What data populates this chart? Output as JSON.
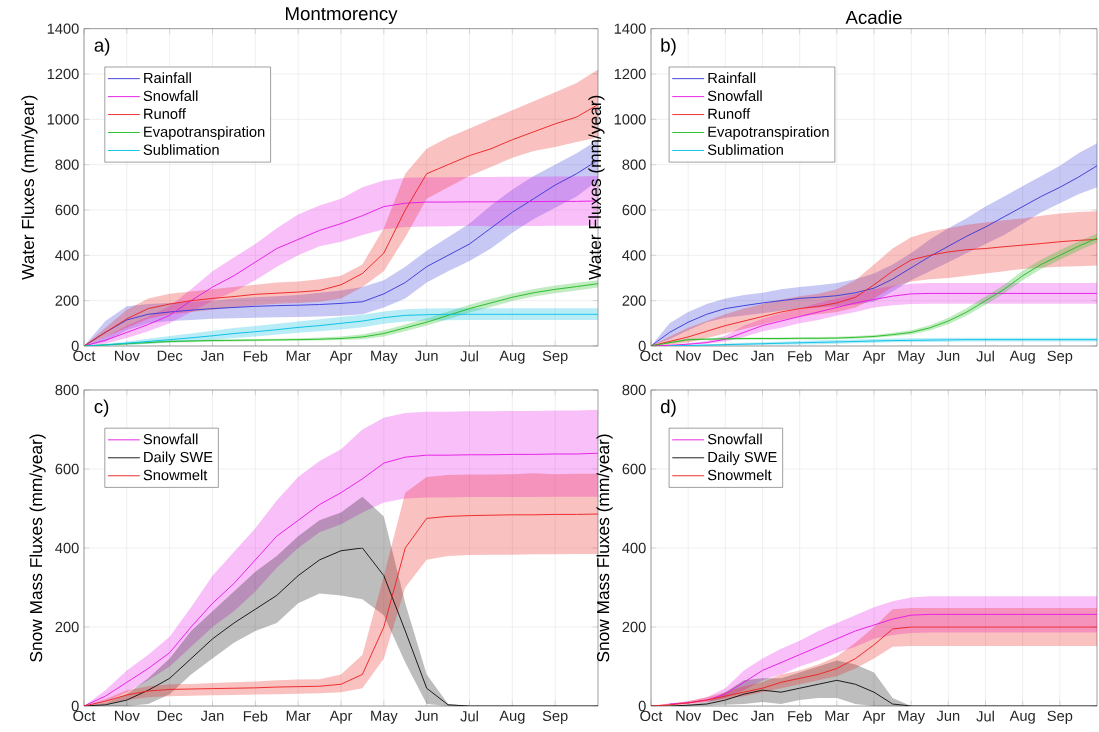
{
  "chart_data": [
    {
      "type": "line",
      "title": "Montmorency",
      "ylabel": "Water Fluxes (mm/year)",
      "annotations": [
        "a)"
      ],
      "grid": true,
      "legend": "top left",
      "marker": "none",
      "line_style": "solid",
      "categories": [
        "Oct",
        null,
        "Nov",
        null,
        "Dec",
        null,
        "Jan",
        null,
        "Feb",
        null,
        "Mar",
        null,
        "Apr",
        null,
        "May",
        null,
        "Jun",
        null,
        "Jul",
        null,
        "Aug",
        null,
        "Sep",
        null,
        null
      ],
      "ylim": [
        0,
        1400
      ],
      "yticks": [
        0,
        200,
        400,
        600,
        800,
        1000,
        1200,
        1400
      ],
      "series": [
        {
          "name": "Rainfall",
          "color": "#3a3ad9",
          "values": [
            0,
            60,
            115,
            140,
            150,
            158,
            165,
            170,
            175,
            178,
            180,
            183,
            188,
            195,
            230,
            280,
            350,
            400,
            450,
            520,
            590,
            650,
            710,
            760,
            820
          ],
          "upper": [
            0,
            110,
            175,
            185,
            190,
            195,
            200,
            210,
            215,
            220,
            225,
            235,
            245,
            260,
            290,
            350,
            420,
            480,
            540,
            620,
            690,
            750,
            800,
            850,
            910
          ],
          "lower": [
            0,
            20,
            70,
            100,
            110,
            115,
            120,
            122,
            125,
            127,
            128,
            130,
            133,
            140,
            170,
            210,
            280,
            330,
            375,
            430,
            500,
            560,
            610,
            660,
            730
          ]
        },
        {
          "name": "Snowfall",
          "color": "#e619e6",
          "values": [
            0,
            25,
            60,
            95,
            135,
            200,
            260,
            310,
            370,
            430,
            470,
            510,
            540,
            575,
            615,
            630,
            635,
            635,
            636,
            636,
            637,
            637,
            638,
            638,
            640
          ],
          "upper": [
            0,
            40,
            90,
            130,
            175,
            250,
            330,
            390,
            450,
            520,
            580,
            620,
            650,
            700,
            730,
            742,
            745,
            745,
            746,
            746,
            747,
            747,
            748,
            748,
            750
          ],
          "lower": [
            0,
            10,
            35,
            65,
            100,
            150,
            200,
            240,
            290,
            350,
            400,
            440,
            460,
            490,
            515,
            525,
            527,
            528,
            530,
            528,
            531,
            529,
            531,
            530,
            532
          ]
        },
        {
          "name": "Runoff",
          "color": "#ee2222",
          "values": [
            0,
            60,
            120,
            165,
            185,
            200,
            210,
            218,
            228,
            233,
            238,
            245,
            270,
            320,
            410,
            600,
            760,
            800,
            840,
            870,
            910,
            945,
            980,
            1010,
            1065
          ],
          "upper": [
            0,
            80,
            160,
            210,
            230,
            240,
            250,
            260,
            270,
            280,
            285,
            295,
            310,
            360,
            520,
            760,
            870,
            920,
            960,
            1000,
            1040,
            1080,
            1120,
            1160,
            1220
          ],
          "lower": [
            0,
            40,
            80,
            120,
            140,
            150,
            160,
            170,
            180,
            186,
            190,
            195,
            210,
            260,
            330,
            480,
            650,
            700,
            750,
            790,
            830,
            860,
            878,
            900,
            920
          ]
        },
        {
          "name": "Evapotranspiration",
          "color": "#22bb22",
          "values": [
            0,
            5,
            10,
            15,
            20,
            22,
            24,
            25,
            26,
            27,
            28,
            30,
            33,
            40,
            55,
            80,
            105,
            135,
            165,
            190,
            215,
            235,
            250,
            262,
            275
          ],
          "upper": [
            0,
            8,
            14,
            20,
            25,
            27,
            29,
            30,
            31,
            32,
            34,
            37,
            42,
            52,
            70,
            95,
            122,
            152,
            182,
            208,
            232,
            252,
            267,
            279,
            290
          ],
          "lower": [
            0,
            2,
            6,
            10,
            15,
            17,
            19,
            20,
            21,
            22,
            23,
            24,
            26,
            30,
            42,
            65,
            90,
            118,
            148,
            172,
            198,
            218,
            233,
            245,
            258
          ]
        },
        {
          "name": "Sublimation",
          "color": "#00bfe6",
          "values": [
            0,
            5,
            12,
            20,
            28,
            36,
            45,
            55,
            63,
            72,
            82,
            90,
            100,
            110,
            125,
            135,
            138,
            140,
            140,
            140,
            140,
            140,
            140,
            140,
            140
          ],
          "upper": [
            0,
            10,
            20,
            32,
            44,
            55,
            67,
            79,
            88,
            98,
            108,
            118,
            128,
            138,
            152,
            162,
            165,
            166,
            166,
            166,
            166,
            166,
            166,
            166,
            166
          ],
          "lower": [
            0,
            2,
            6,
            10,
            15,
            20,
            27,
            35,
            42,
            50,
            58,
            65,
            73,
            83,
            98,
            108,
            112,
            114,
            115,
            115,
            115,
            115,
            115,
            115,
            115
          ]
        }
      ]
    },
    {
      "type": "line",
      "title": "Acadie",
      "ylabel": "Water Fluxes (mm/year)",
      "annotations": [
        "b)"
      ],
      "grid": true,
      "legend": "top left",
      "marker": "none",
      "line_style": "solid",
      "categories": [
        "Oct",
        null,
        "Nov",
        null,
        "Dec",
        null,
        "Jan",
        null,
        "Feb",
        null,
        "Mar",
        null,
        "Apr",
        null,
        "May",
        null,
        "Jun",
        null,
        "Jul",
        null,
        "Aug",
        null,
        "Sep",
        null,
        null
      ],
      "ylim": [
        0,
        1400
      ],
      "yticks": [
        0,
        200,
        400,
        600,
        800,
        1000,
        1200,
        1400
      ],
      "series": [
        {
          "name": "Rainfall",
          "color": "#3a3ad9",
          "values": [
            0,
            60,
            105,
            140,
            165,
            178,
            190,
            200,
            210,
            215,
            222,
            235,
            255,
            295,
            345,
            395,
            440,
            485,
            525,
            570,
            615,
            660,
            700,
            745,
            795
          ],
          "upper": [
            0,
            100,
            150,
            185,
            210,
            225,
            235,
            250,
            260,
            268,
            278,
            295,
            320,
            360,
            410,
            470,
            520,
            565,
            615,
            660,
            705,
            750,
            795,
            850,
            895
          ],
          "lower": [
            0,
            30,
            70,
            105,
            125,
            135,
            145,
            155,
            165,
            170,
            175,
            183,
            195,
            240,
            290,
            330,
            370,
            410,
            450,
            490,
            540,
            590,
            630,
            670,
            700
          ]
        },
        {
          "name": "Snowfall",
          "color": "#e619e6",
          "values": [
            0,
            3,
            8,
            15,
            30,
            60,
            90,
            110,
            130,
            150,
            170,
            190,
            205,
            220,
            230,
            232,
            232,
            232,
            232,
            232,
            232,
            232,
            232,
            232,
            232
          ],
          "upper": [
            0,
            5,
            12,
            22,
            45,
            90,
            120,
            145,
            165,
            190,
            210,
            230,
            250,
            265,
            275,
            278,
            278,
            278,
            278,
            278,
            278,
            278,
            278,
            278,
            278
          ],
          "lower": [
            0,
            1,
            5,
            10,
            20,
            40,
            65,
            80,
            100,
            115,
            135,
            150,
            170,
            180,
            185,
            186,
            186,
            186,
            186,
            186,
            186,
            186,
            186,
            186,
            186
          ]
        },
        {
          "name": "Runoff",
          "color": "#ee2222",
          "values": [
            0,
            20,
            40,
            65,
            90,
            110,
            130,
            150,
            165,
            175,
            190,
            215,
            270,
            330,
            380,
            400,
            415,
            425,
            430,
            438,
            445,
            452,
            460,
            466,
            470
          ],
          "upper": [
            0,
            42,
            80,
            110,
            140,
            165,
            185,
            205,
            220,
            230,
            250,
            290,
            360,
            430,
            480,
            505,
            520,
            535,
            545,
            555,
            563,
            575,
            585,
            591,
            595
          ],
          "lower": [
            0,
            5,
            15,
            35,
            55,
            75,
            95,
            115,
            130,
            140,
            150,
            170,
            210,
            260,
            285,
            295,
            300,
            310,
            320,
            330,
            340,
            345,
            350,
            352,
            355
          ]
        },
        {
          "name": "Evapotranspiration",
          "color": "#22bb22",
          "values": [
            0,
            15,
            28,
            30,
            32,
            33,
            33,
            33,
            34,
            34,
            35,
            38,
            42,
            50,
            60,
            80,
            110,
            150,
            200,
            250,
            310,
            360,
            400,
            440,
            475
          ],
          "upper": [
            0,
            20,
            33,
            35,
            37,
            38,
            38,
            38,
            39,
            40,
            41,
            44,
            49,
            58,
            70,
            92,
            125,
            168,
            218,
            270,
            332,
            382,
            422,
            462,
            495
          ],
          "lower": [
            0,
            10,
            23,
            25,
            27,
            28,
            28,
            28,
            29,
            29,
            30,
            32,
            36,
            43,
            51,
            68,
            96,
            134,
            182,
            232,
            290,
            340,
            380,
            420,
            455
          ]
        },
        {
          "name": "Sublimation",
          "color": "#00bfe6",
          "values": [
            null,
            1,
            2,
            4,
            6,
            8,
            10,
            12,
            14,
            16,
            18,
            20,
            22,
            24,
            25,
            26,
            27,
            28,
            28,
            28,
            28,
            28,
            28,
            28,
            28
          ],
          "upper": [
            0,
            3,
            5,
            8,
            11,
            14,
            17,
            20,
            22,
            25,
            27,
            29,
            31,
            33,
            34,
            35,
            36,
            36,
            36,
            36,
            36,
            36,
            36,
            36,
            36
          ],
          "lower": [
            0,
            0,
            0,
            1,
            2,
            3,
            4,
            5,
            7,
            8,
            10,
            12,
            14,
            16,
            17,
            18,
            19,
            20,
            20,
            20,
            20,
            20,
            20,
            20,
            20
          ]
        }
      ]
    },
    {
      "type": "line",
      "ylabel": "Snow Mass Fluxes (mm/year)",
      "annotations": [
        "c)"
      ],
      "grid": true,
      "legend": "top left",
      "marker": "none",
      "line_style": "solid",
      "categories": [
        "Oct",
        null,
        "Nov",
        null,
        "Dec",
        null,
        "Jan",
        null,
        "Feb",
        null,
        "Mar",
        null,
        "Apr",
        null,
        "May",
        null,
        "Jun",
        null,
        "Jul",
        null,
        "Aug",
        null,
        "Sep",
        null,
        null
      ],
      "ylim": [
        0,
        800
      ],
      "yticks": [
        0,
        200,
        400,
        600,
        800
      ],
      "series": [
        {
          "name": "Snowfall",
          "color": "#e619e6",
          "values": [
            0,
            25,
            60,
            95,
            135,
            200,
            260,
            310,
            370,
            430,
            470,
            510,
            540,
            575,
            615,
            630,
            635,
            635,
            636,
            636,
            637,
            637,
            638,
            638,
            640
          ],
          "upper": [
            0,
            40,
            90,
            130,
            175,
            250,
            330,
            390,
            450,
            520,
            580,
            620,
            650,
            700,
            730,
            742,
            745,
            745,
            746,
            746,
            747,
            747,
            748,
            748,
            750
          ],
          "lower": [
            0,
            10,
            35,
            65,
            100,
            150,
            200,
            240,
            290,
            350,
            400,
            440,
            460,
            490,
            515,
            525,
            528,
            528,
            529,
            529,
            529,
            529,
            530,
            530,
            530
          ]
        },
        {
          "name": "Daily SWE",
          "color": "#111111",
          "values": [
            0,
            3,
            15,
            40,
            70,
            120,
            170,
            210,
            245,
            280,
            330,
            370,
            393,
            400,
            330,
            190,
            45,
            3,
            0,
            0,
            0,
            0,
            0,
            0,
            0
          ],
          "upper": [
            0,
            8,
            30,
            70,
            120,
            190,
            240,
            290,
            340,
            380,
            430,
            470,
            490,
            530,
            480,
            260,
            80,
            5,
            0,
            0,
            0,
            0,
            0,
            0,
            0
          ],
          "lower": [
            0,
            0,
            0,
            5,
            30,
            80,
            120,
            160,
            190,
            210,
            260,
            285,
            280,
            270,
            230,
            110,
            5,
            0,
            0,
            0,
            0,
            0,
            0,
            0,
            0
          ]
        },
        {
          "name": "Snowmelt",
          "color": "#ee2222",
          "values": [
            0,
            12,
            28,
            38,
            42,
            43,
            44,
            45,
            46,
            48,
            49,
            50,
            55,
            80,
            200,
            400,
            475,
            480,
            482,
            483,
            484,
            484,
            485,
            485,
            486
          ],
          "upper": [
            0,
            18,
            40,
            50,
            55,
            56,
            58,
            60,
            62,
            65,
            67,
            68,
            80,
            130,
            330,
            540,
            580,
            585,
            586,
            586,
            587,
            589,
            587,
            588,
            588
          ],
          "lower": [
            0,
            5,
            15,
            22,
            25,
            26,
            27,
            28,
            29,
            30,
            31,
            32,
            35,
            45,
            120,
            300,
            370,
            380,
            382,
            383,
            383,
            384,
            384,
            385,
            385
          ]
        }
      ]
    },
    {
      "type": "line",
      "ylabel": "Snow Mass Fluxes (mm/year)",
      "annotations": [
        "d)"
      ],
      "grid": true,
      "legend": "top left",
      "marker": "none",
      "line_style": "solid",
      "categories": [
        "Oct",
        null,
        "Nov",
        null,
        "Dec",
        null,
        "Jan",
        null,
        "Feb",
        null,
        "Mar",
        null,
        "Apr",
        null,
        "May",
        null,
        "Jun",
        null,
        "Jul",
        null,
        "Aug",
        null,
        "Sep",
        null,
        null
      ],
      "ylim": [
        0,
        800
      ],
      "yticks": [
        0,
        200,
        400,
        600,
        800
      ],
      "series": [
        {
          "name": "Snowfall",
          "color": "#e619e6",
          "values": [
            null,
            5,
            8,
            15,
            30,
            60,
            90,
            110,
            130,
            150,
            170,
            190,
            205,
            220,
            230,
            232,
            232,
            232,
            232,
            232,
            232,
            232,
            232,
            232,
            232
          ],
          "upper": [
            0,
            7,
            12,
            22,
            45,
            90,
            120,
            145,
            165,
            190,
            210,
            230,
            250,
            265,
            275,
            278,
            278,
            278,
            278,
            278,
            278,
            278,
            278,
            278,
            278
          ],
          "lower": [
            0,
            2,
            5,
            10,
            20,
            40,
            65,
            80,
            100,
            115,
            135,
            150,
            170,
            180,
            185,
            186,
            186,
            186,
            186,
            186,
            186,
            186,
            186,
            186,
            186
          ]
        },
        {
          "name": "Daily SWE",
          "color": "#111111",
          "values": [
            0,
            0,
            2,
            5,
            15,
            30,
            40,
            35,
            45,
            55,
            65,
            55,
            35,
            5,
            0,
            0,
            0,
            0,
            0,
            0,
            0,
            0,
            0,
            0,
            0
          ],
          "upper": [
            0,
            0,
            4,
            10,
            35,
            65,
            70,
            70,
            85,
            100,
            115,
            105,
            85,
            20,
            0,
            0,
            0,
            0,
            0,
            0,
            0,
            0,
            0,
            0,
            0
          ],
          "lower": [
            0,
            0,
            0,
            1,
            3,
            5,
            10,
            5,
            15,
            20,
            20,
            5,
            0,
            0,
            0,
            0,
            0,
            0,
            0,
            0,
            0,
            0,
            0,
            0,
            0
          ]
        },
        {
          "name": "Snowmelt",
          "color": "#ee2222",
          "values": [
            0,
            3,
            8,
            15,
            25,
            35,
            45,
            60,
            70,
            80,
            95,
            120,
            155,
            195,
            200,
            200,
            200,
            200,
            200,
            200,
            200,
            200,
            200,
            200,
            200
          ],
          "upper": [
            0,
            5,
            12,
            22,
            35,
            50,
            60,
            80,
            90,
            105,
            125,
            160,
            200,
            245,
            248,
            248,
            248,
            248,
            248,
            248,
            248,
            248,
            248,
            248,
            248
          ],
          "lower": [
            0,
            1,
            5,
            10,
            18,
            25,
            35,
            45,
            55,
            65,
            75,
            95,
            120,
            150,
            152,
            152,
            152,
            152,
            152,
            152,
            152,
            152,
            152,
            152,
            152
          ]
        }
      ]
    }
  ]
}
